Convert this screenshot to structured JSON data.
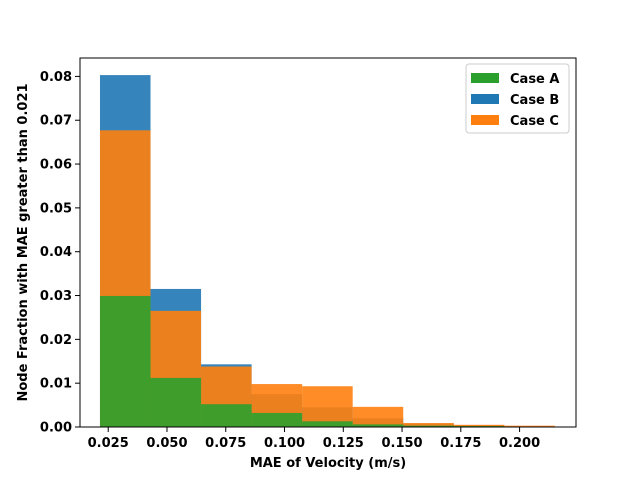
{
  "chart_data": {
    "type": "bar",
    "subtype": "histogram-overlay",
    "xlabel": "MAE of Velocity (m/s)",
    "ylabel": "Node Fraction with MAE greater than 0.021",
    "xlim": [
      0.013,
      0.224
    ],
    "ylim": [
      0,
      0.0842
    ],
    "xticks": [
      {
        "value": 0.025,
        "label": "0.025"
      },
      {
        "value": 0.05,
        "label": "0.050"
      },
      {
        "value": 0.075,
        "label": "0.075"
      },
      {
        "value": 0.1,
        "label": "0.100"
      },
      {
        "value": 0.125,
        "label": "0.125"
      },
      {
        "value": 0.15,
        "label": "0.150"
      },
      {
        "value": 0.175,
        "label": "0.175"
      },
      {
        "value": 0.2,
        "label": "0.200"
      }
    ],
    "yticks": [
      {
        "value": 0.0,
        "label": "0.00"
      },
      {
        "value": 0.01,
        "label": "0.01"
      },
      {
        "value": 0.02,
        "label": "0.02"
      },
      {
        "value": 0.03,
        "label": "0.03"
      },
      {
        "value": 0.04,
        "label": "0.04"
      },
      {
        "value": 0.05,
        "label": "0.05"
      },
      {
        "value": 0.06,
        "label": "0.06"
      },
      {
        "value": 0.07,
        "label": "0.07"
      },
      {
        "value": 0.08,
        "label": "0.08"
      }
    ],
    "grid": false,
    "legend_position": "top-right",
    "series": [
      {
        "name": "Case B",
        "color": "#1f77b4",
        "bins": [
          {
            "x0": 0.0215,
            "x1": 0.043,
            "value": 0.0803
          },
          {
            "x0": 0.043,
            "x1": 0.0645,
            "value": 0.0315
          },
          {
            "x0": 0.0645,
            "x1": 0.086,
            "value": 0.0143
          },
          {
            "x0": 0.086,
            "x1": 0.1075,
            "value": 0.0075
          },
          {
            "x0": 0.1075,
            "x1": 0.129,
            "value": 0.0045
          },
          {
            "x0": 0.129,
            "x1": 0.1505,
            "value": 0.002
          },
          {
            "x0": 0.1505,
            "x1": 0.172,
            "value": 0.0008
          },
          {
            "x0": 0.172,
            "x1": 0.1935,
            "value": 0.0004
          }
        ]
      },
      {
        "name": "Case C",
        "color": "#ff7f0e",
        "bins": [
          {
            "x0": 0.0215,
            "x1": 0.043,
            "value": 0.0677
          },
          {
            "x0": 0.043,
            "x1": 0.0645,
            "value": 0.0265
          },
          {
            "x0": 0.0645,
            "x1": 0.086,
            "value": 0.0138
          },
          {
            "x0": 0.086,
            "x1": 0.1075,
            "value": 0.0098
          },
          {
            "x0": 0.1075,
            "x1": 0.129,
            "value": 0.0093
          },
          {
            "x0": 0.129,
            "x1": 0.1505,
            "value": 0.0046
          },
          {
            "x0": 0.1505,
            "x1": 0.172,
            "value": 0.0009
          },
          {
            "x0": 0.172,
            "x1": 0.1935,
            "value": 0.0005
          },
          {
            "x0": 0.1935,
            "x1": 0.215,
            "value": 0.0003
          }
        ]
      },
      {
        "name": "Case A",
        "color": "#2ca02c",
        "bins": [
          {
            "x0": 0.0215,
            "x1": 0.043,
            "value": 0.0299
          },
          {
            "x0": 0.043,
            "x1": 0.0645,
            "value": 0.0112
          },
          {
            "x0": 0.0645,
            "x1": 0.086,
            "value": 0.0052
          },
          {
            "x0": 0.086,
            "x1": 0.1075,
            "value": 0.0032
          },
          {
            "x0": 0.1075,
            "x1": 0.129,
            "value": 0.0013
          },
          {
            "x0": 0.129,
            "x1": 0.1505,
            "value": 0.0006
          },
          {
            "x0": 0.1505,
            "x1": 0.172,
            "value": 0.0003
          },
          {
            "x0": 0.172,
            "x1": 0.1935,
            "value": 0.0002
          }
        ]
      }
    ],
    "legend": [
      {
        "name": "Case A",
        "color": "#2ca02c"
      },
      {
        "name": "Case B",
        "color": "#1f77b4"
      },
      {
        "name": "Case C",
        "color": "#ff7f0e"
      }
    ]
  }
}
